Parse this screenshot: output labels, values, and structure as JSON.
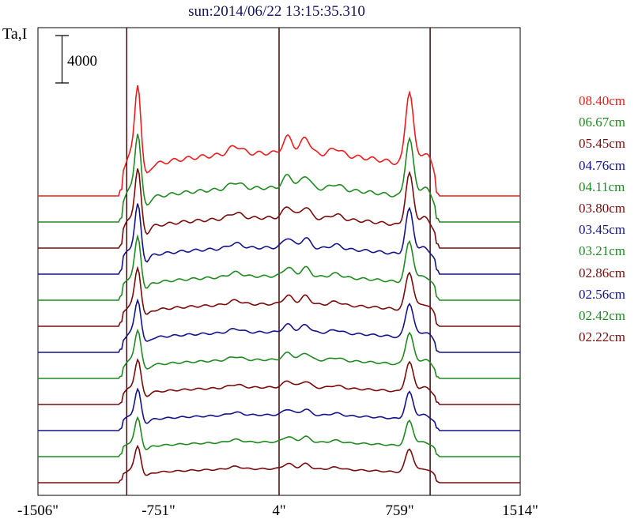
{
  "title": "sun:2014/06/22 13:15:35.310",
  "ylabel": "Ta,I",
  "scale_bar_label": "4000",
  "colors": {
    "red": "#ee1c1c",
    "green": "#1f8a1f",
    "maroon": "#7a0b0b",
    "navy": "#14148a",
    "axis": "#000000",
    "marker": "#3a0c0c"
  },
  "chart_data": {
    "type": "line",
    "title": "sun:2014/06/22 13:15:35.310",
    "ylabel": "Ta,I",
    "xlabel": "",
    "x_ticks": [
      "-1506\"",
      "-751\"",
      "4\"",
      "759\"",
      "1514\""
    ],
    "x_tick_values": [
      -1506,
      -751,
      4,
      759,
      1514
    ],
    "xlim": [
      -1506,
      1514
    ],
    "vertical_markers": [
      -950,
      4,
      950
    ],
    "scale_bar": 4000,
    "grid": false,
    "legend_position": "right",
    "series": [
      {
        "name": "08.40cm",
        "color": "#ee1c1c",
        "offset": 12,
        "amp": 1.7
      },
      {
        "name": "06.67cm",
        "color": "#1f8a1f",
        "offset": 11,
        "amp": 1.35
      },
      {
        "name": "05.45cm",
        "color": "#7a0b0b",
        "offset": 10,
        "amp": 1.2
      },
      {
        "name": "04.76cm",
        "color": "#14148a",
        "offset": 9,
        "amp": 1.05
      },
      {
        "name": "04.11cm",
        "color": "#1f8a1f",
        "offset": 8,
        "amp": 0.95
      },
      {
        "name": "03.80cm",
        "color": "#7a0b0b",
        "offset": 7,
        "amp": 0.88
      },
      {
        "name": "03.45cm",
        "color": "#14148a",
        "offset": 6,
        "amp": 0.8
      },
      {
        "name": "03.21cm",
        "color": "#1f8a1f",
        "offset": 5,
        "amp": 0.74
      },
      {
        "name": "02.86cm",
        "color": "#7a0b0b",
        "offset": 4,
        "amp": 0.68
      },
      {
        "name": "02.56cm",
        "color": "#14148a",
        "offset": 3,
        "amp": 0.62
      },
      {
        "name": "02.42cm",
        "color": "#1f8a1f",
        "offset": 2,
        "amp": 0.58
      },
      {
        "name": "02.22cm",
        "color": "#7a0b0b",
        "offset": 1,
        "amp": 0.55
      }
    ]
  }
}
